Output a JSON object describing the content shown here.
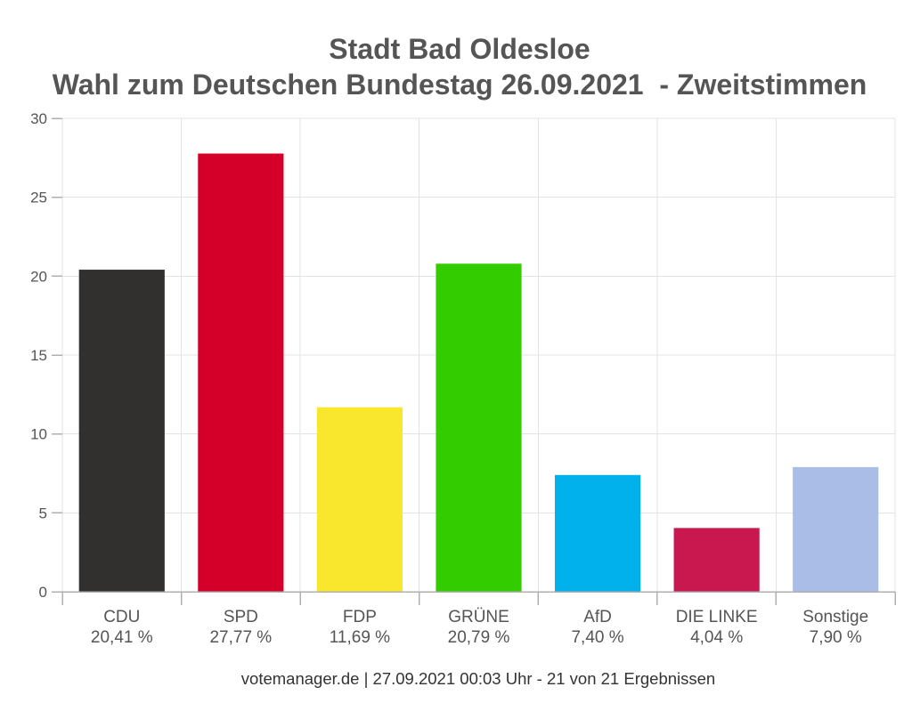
{
  "chart_data": {
    "type": "bar",
    "title": "Stadt Bad Oldesloe",
    "subtitle": "Wahl zum Deutschen Bundestag 26.09.2021  - Zweitstimmen",
    "xlabel": "",
    "ylabel": "",
    "categories": [
      "CDU",
      "SPD",
      "FDP",
      "GRÜNE",
      "AfD",
      "DIE LINKE",
      "Sonstige"
    ],
    "values": [
      20.41,
      27.77,
      11.69,
      20.79,
      7.4,
      4.04,
      7.9
    ],
    "value_labels": [
      "20,41 %",
      "27,77 %",
      "11,69 %",
      "20,79 %",
      "7,40 %",
      "4,04 %",
      "7,90 %"
    ],
    "colors": [
      "#32302e",
      "#d5002a",
      "#f9e72d",
      "#33cc00",
      "#00b1eb",
      "#c9174f",
      "#a9bde6"
    ],
    "ylim": [
      0,
      30
    ],
    "yticks": [
      0,
      5,
      10,
      15,
      20,
      25,
      30
    ],
    "grid": true,
    "legend": "none"
  },
  "footer": {
    "text": "votemanager.de | 27.09.2021 00:03 Uhr - 21 von 21 Ergebnissen"
  }
}
